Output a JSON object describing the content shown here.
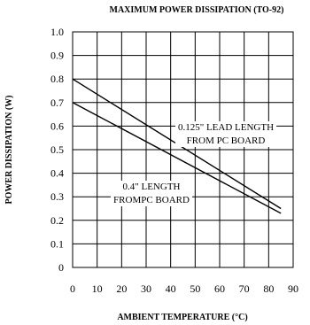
{
  "chart_data": {
    "type": "line",
    "title": "MAXIMUM POWER DISSIPATION (TO-92)",
    "xlabel": "AMBIENT TEMPERATURE (°C)",
    "ylabel": "POWER DISSIPATION (W)",
    "xlim": [
      0,
      90
    ],
    "ylim": [
      0,
      1.0
    ],
    "xticks": [
      "0",
      "10",
      "20",
      "30",
      "40",
      "50",
      "60",
      "70",
      "80",
      "90"
    ],
    "yticks": [
      "0",
      "0.1",
      "0.2",
      "0.3",
      "0.4",
      "0.5",
      "0.6",
      "0.7",
      "0.8",
      "0.9",
      "1.0"
    ],
    "grid": true,
    "series": [
      {
        "x": [
          0,
          85
        ],
        "y": [
          0.8,
          0.25
        ],
        "annotation": [
          "0.125\" LEAD LENGTH",
          "FROM PC BOARD"
        ]
      },
      {
        "x": [
          0,
          85
        ],
        "y": [
          0.7,
          0.23
        ],
        "annotation": [
          "0.4\" LENGTH",
          "FROMPC BOARD"
        ]
      }
    ]
  }
}
